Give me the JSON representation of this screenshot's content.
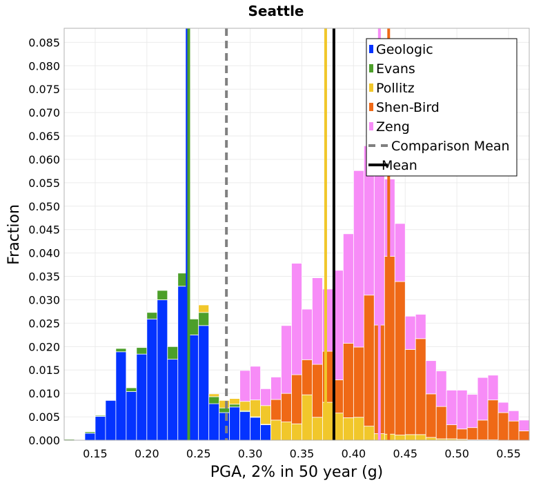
{
  "chart_data": {
    "type": "bar",
    "stacked": true,
    "title": "Seattle",
    "xlabel": "PGA, 2% in 50 year (g)",
    "ylabel": "Fraction",
    "xlim": [
      0.12,
      0.57
    ],
    "ylim": [
      0,
      0.088
    ],
    "bin_width": 0.01,
    "grid": true,
    "legend_position": "top-right",
    "x_ticks": [
      "0.15",
      "0.20",
      "0.25",
      "0.30",
      "0.35",
      "0.40",
      "0.45",
      "0.50",
      "0.55"
    ],
    "y_ticks": [
      "0.000",
      "0.005",
      "0.010",
      "0.015",
      "0.020",
      "0.025",
      "0.030",
      "0.035",
      "0.040",
      "0.045",
      "0.050",
      "0.055",
      "0.060",
      "0.065",
      "0.070",
      "0.075",
      "0.080",
      "0.085"
    ],
    "x": [
      0.125,
      0.135,
      0.145,
      0.155,
      0.165,
      0.175,
      0.185,
      0.195,
      0.205,
      0.215,
      0.225,
      0.235,
      0.245,
      0.255,
      0.265,
      0.275,
      0.285,
      0.295,
      0.305,
      0.315,
      0.325,
      0.335,
      0.345,
      0.355,
      0.365,
      0.375,
      0.385,
      0.395,
      0.405,
      0.415,
      0.425,
      0.435,
      0.445,
      0.455,
      0.465,
      0.475,
      0.485,
      0.495,
      0.505,
      0.515,
      0.525,
      0.535,
      0.545,
      0.555,
      0.565
    ],
    "series": [
      {
        "name": "Geologic",
        "color": "#0433ff",
        "values": [
          0,
          0,
          0.0015,
          0.0051,
          0.0085,
          0.0189,
          0.0104,
          0.0184,
          0.0259,
          0.03,
          0.0173,
          0.0329,
          0.0225,
          0.0245,
          0.0078,
          0.0059,
          0.0071,
          0.0061,
          0.0049,
          0.0033,
          0,
          0,
          0,
          0,
          0,
          0,
          0,
          0,
          0,
          0,
          0,
          0,
          0,
          0,
          0,
          0,
          0,
          0,
          0,
          0,
          0,
          0,
          0,
          0,
          0
        ]
      },
      {
        "name": "Evans",
        "color": "#4c9f2a",
        "values": [
          0.0002,
          0.0001,
          0.0003,
          0.0002,
          0,
          0.0007,
          0.0008,
          0.0014,
          0.0014,
          0.002,
          0.0027,
          0.0028,
          0.0034,
          0.0028,
          0.0015,
          0.001,
          0.0006,
          0.0002,
          0.0001,
          0.0001,
          0,
          0,
          0,
          0,
          0,
          0,
          0,
          0,
          0,
          0,
          0,
          0,
          0,
          0,
          0,
          0,
          0,
          0,
          0,
          0,
          0,
          0,
          0,
          0,
          0
        ]
      },
      {
        "name": "Pollitz",
        "color": "#f1c72b",
        "values": [
          0,
          0,
          0,
          0,
          0,
          0,
          0,
          0,
          0,
          0,
          0,
          0,
          0,
          0.0016,
          0.0006,
          0.0016,
          0.0012,
          0.002,
          0.0036,
          0.004,
          0.0043,
          0.0039,
          0.0035,
          0.0097,
          0.0049,
          0.0081,
          0.0058,
          0.0048,
          0.0049,
          0.003,
          0.0014,
          0.0013,
          0.0011,
          0.0012,
          0.0012,
          0.0006,
          0.0003,
          0.0003,
          0.0002,
          0.0001,
          0.0001,
          0.0001,
          0,
          0,
          0
        ]
      },
      {
        "name": "Shen-Bird",
        "color": "#ef6916",
        "values": [
          0,
          0,
          0,
          0,
          0,
          0,
          0,
          0,
          0,
          0,
          0,
          0,
          0,
          0,
          0,
          0,
          0,
          0,
          0,
          0,
          0.0044,
          0.0061,
          0.0105,
          0.0075,
          0.0113,
          0.0109,
          0.0071,
          0.0159,
          0.015,
          0.028,
          0.0232,
          0.038,
          0.0328,
          0.0182,
          0.0205,
          0.0093,
          0.0069,
          0.003,
          0.0022,
          0.0026,
          0.0042,
          0.0085,
          0.0059,
          0.0041,
          0.002
        ]
      },
      {
        "name": "Zeng",
        "color": "#f78cf7",
        "values": [
          0,
          0,
          0,
          0,
          0,
          0,
          0,
          0,
          0,
          0,
          0,
          0,
          0,
          0,
          0,
          0,
          0,
          0.0066,
          0.0072,
          0.0036,
          0.0048,
          0.0145,
          0.0238,
          0.0108,
          0.0185,
          0.0133,
          0.0234,
          0.0234,
          0.0377,
          0.0319,
          0.0347,
          0.0165,
          0.0124,
          0.0071,
          0.0052,
          0.0071,
          0.0076,
          0.0074,
          0.0083,
          0.0071,
          0.0091,
          0.0053,
          0.0022,
          0.0022,
          0.0023
        ]
      }
    ],
    "vlines": [
      {
        "label": "Geologic mean",
        "x": 0.239,
        "color": "#0433ff",
        "style": "solid"
      },
      {
        "label": "Evans mean",
        "x": 0.2405,
        "color": "#4c9f2a",
        "style": "solid"
      },
      {
        "label": "Pollitz mean",
        "x": 0.373,
        "color": "#f1c72b",
        "style": "solid"
      },
      {
        "label": "Shen-Bird mean",
        "x": 0.434,
        "color": "#ef6916",
        "style": "solid"
      },
      {
        "label": "Zeng mean",
        "x": 0.425,
        "color": "#f78cf7",
        "style": "solid"
      },
      {
        "label": "Comparison Mean",
        "x": 0.277,
        "color": "#808080",
        "style": "dashed"
      },
      {
        "label": "Mean",
        "x": 0.381,
        "color": "#000000",
        "style": "solid"
      }
    ],
    "legend": [
      {
        "label": "Geologic",
        "color": "#0433ff",
        "kind": "patch"
      },
      {
        "label": "Evans",
        "color": "#4c9f2a",
        "kind": "patch"
      },
      {
        "label": "Pollitz",
        "color": "#f1c72b",
        "kind": "patch"
      },
      {
        "label": "Shen-Bird",
        "color": "#ef6916",
        "kind": "patch"
      },
      {
        "label": "Zeng",
        "color": "#f78cf7",
        "kind": "patch"
      },
      {
        "label": "Comparison Mean",
        "color": "#808080",
        "kind": "dashed"
      },
      {
        "label": "Mean",
        "color": "#000000",
        "kind": "line"
      }
    ]
  }
}
